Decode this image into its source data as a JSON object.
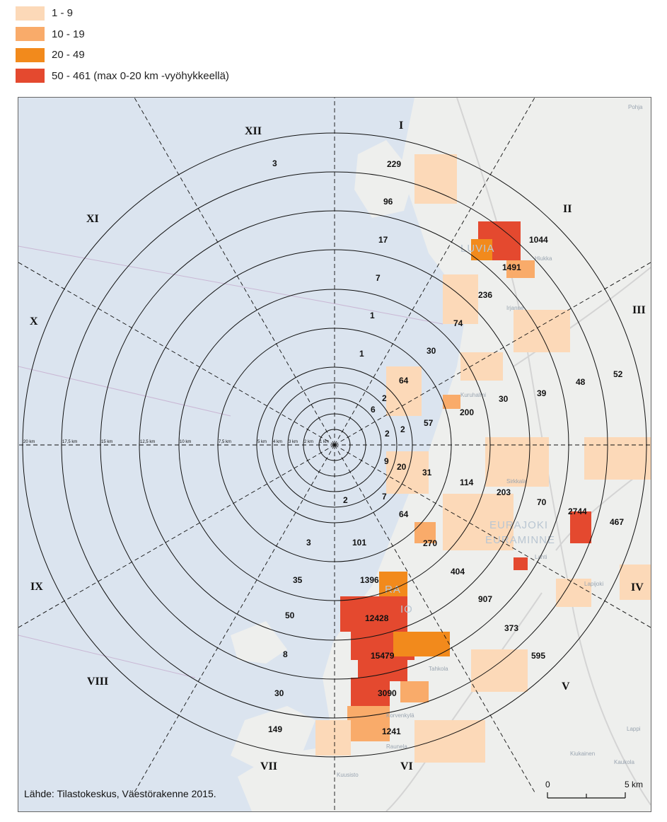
{
  "legend": {
    "items": [
      {
        "label": "1 - 9",
        "color": "#fcd9b8"
      },
      {
        "label": "10 - 19",
        "color": "#f9ab6a"
      },
      {
        "label": "20 - 49",
        "color": "#f28a1c"
      },
      {
        "label": "50 - 461 (max 0-20 km -vyöhykkeellä)",
        "color": "#e4492f"
      }
    ]
  },
  "map": {
    "ring_labels": [
      "20 km",
      "17,5 km",
      "15 km",
      "12,5 km",
      "10 km",
      "7,5 km",
      "5 km",
      "4 km",
      "3 km",
      "2 km",
      "1 km"
    ],
    "sectors": [
      "I",
      "II",
      "III",
      "IV",
      "V",
      "VI",
      "VII",
      "VIII",
      "IX",
      "X",
      "XI",
      "XII"
    ],
    "values": [
      "3",
      "229",
      "96",
      "17",
      "7",
      "1",
      "1",
      "30",
      "64",
      "2",
      "6",
      "2",
      "2",
      "57",
      "200",
      "30",
      "39",
      "48",
      "52",
      "74",
      "236",
      "1491",
      "1044",
      "9",
      "20",
      "31",
      "114",
      "203",
      "70",
      "2744",
      "467",
      "7",
      "2",
      "64",
      "270",
      "404",
      "907",
      "373",
      "595",
      "101",
      "3",
      "1396",
      "35",
      "12428",
      "50",
      "15479",
      "8",
      "3090",
      "30",
      "1241",
      "149"
    ],
    "town_labels": [
      "LUVIA",
      "RA",
      "IO",
      "EURAJOKI",
      "EURAMINNE"
    ],
    "place_names": [
      "Pohja",
      "Kuruhalmi",
      "Lahti",
      "Sirkkala",
      "Tahkola",
      "Korvenkylä",
      "Irjanne",
      "Lapijoki",
      "Kaukola",
      "Lappi",
      "Kiukainen",
      "Kuusisto",
      "Hiukka",
      "Raunela"
    ]
  },
  "source": "Lähde: Tilastokeskus, Väestörakenne 2015.",
  "scalebar": {
    "start": "0",
    "end": "5 km"
  }
}
